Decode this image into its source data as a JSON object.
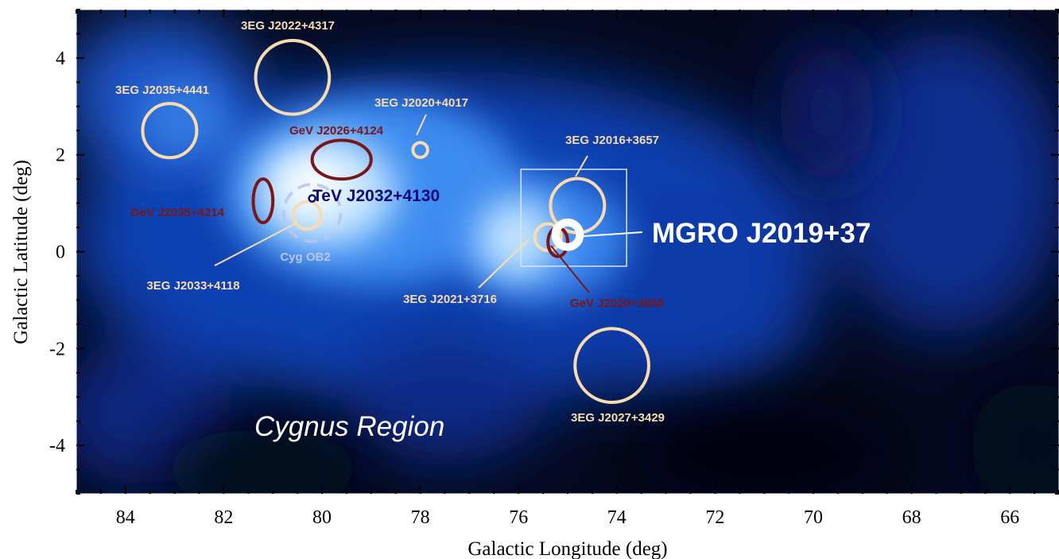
{
  "chart_data": {
    "type": "sky-map",
    "xlabel": "Galactic Longitude (deg)",
    "ylabel": "Galactic Latitude (deg)",
    "xlim": [
      85,
      65
    ],
    "ylim": [
      -5,
      5
    ],
    "x_ticks": [
      84,
      82,
      80,
      78,
      76,
      74,
      72,
      70,
      68,
      66
    ],
    "y_ticks": [
      4,
      2,
      0,
      -2,
      -4
    ],
    "x_tick_labels": [
      "84",
      "82",
      "80",
      "78",
      "76",
      "74",
      "72",
      "70",
      "68",
      "66"
    ],
    "y_tick_labels": [
      "4",
      "2",
      "0",
      "-2",
      "-4"
    ],
    "region_label": "Cygnus Region",
    "colors": {
      "egret": "#f8dcb0",
      "gev": "#7a1618",
      "tev": "#0a0a7a",
      "cygob2": "#b8c6ee",
      "mgro": "#ffffff"
    },
    "egret_sources": [
      {
        "name": "3EG J2022+4317",
        "l": 80.6,
        "b": 3.6,
        "r": 0.75
      },
      {
        "name": "3EG J2035+4441",
        "l": 83.1,
        "b": 2.5,
        "r": 0.55
      },
      {
        "name": "3EG J2020+4017",
        "l": 78.0,
        "b": 2.1,
        "r": 0.15
      },
      {
        "name": "3EG J2016+3657",
        "l": 74.8,
        "b": 0.95,
        "r": 0.55
      },
      {
        "name": "3EG J2033+4118",
        "l": 80.3,
        "b": 0.75,
        "r": 0.28
      },
      {
        "name": "3EG J2021+3716",
        "l": 75.4,
        "b": 0.3,
        "r": 0.27
      },
      {
        "name": "3EG J2027+3429",
        "l": 74.1,
        "b": -2.35,
        "r": 0.75
      }
    ],
    "gev_sources": [
      {
        "name": "GeV J2026+4124",
        "l": 79.6,
        "b": 1.9,
        "rl": 0.6,
        "rb": 0.4
      },
      {
        "name": "GeV J2035+4214",
        "l": 81.2,
        "b": 1.05,
        "rl": 0.2,
        "rb": 0.45
      },
      {
        "name": "GeV J2020+3658",
        "l": 75.2,
        "b": 0.2,
        "rl": 0.2,
        "rb": 0.3
      }
    ],
    "tev_source": {
      "name": "TeV J2032+4130",
      "l": 80.2,
      "b": 1.1
    },
    "cyg_ob2": {
      "name": "Cyg OB2",
      "l": 80.2,
      "b": 0.8,
      "r": 0.58
    },
    "mgro_source": {
      "name": "MGRO J2019+37",
      "l": 75.0,
      "b": 0.35,
      "r": 0.25
    },
    "zoom_box": {
      "l_min": 73.8,
      "l_max": 75.95,
      "b_min": -0.3,
      "b_max": 1.7
    }
  }
}
